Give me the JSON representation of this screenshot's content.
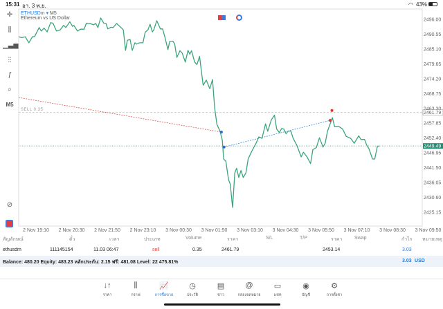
{
  "status_bar": {
    "time": "15:31",
    "date": "อา. 3 พ.ย.",
    "battery": "43%"
  },
  "chart_header": {
    "symbol": "ETHUSDm",
    "timeframe": "M5",
    "description": "Ethereum vs US Dollar"
  },
  "toolbar": {
    "timeframe_label": "M5"
  },
  "chart_data": {
    "type": "line",
    "title": "ETHUSDm, M5",
    "x_unit": "minutes since 2 Nov 19:10",
    "ylim": [
      2421,
      2499
    ],
    "y_ticks": [
      "2496.00",
      "2490.55",
      "2485.10",
      "2479.65",
      "2474.20",
      "2468.75",
      "2463.30",
      "2457.85",
      "2452.40",
      "2446.95",
      "2441.50",
      "2436.05",
      "2430.60",
      "2425.15"
    ],
    "x_ticks": [
      "2 Nov 19:10",
      "2 Nov 20:30",
      "2 Nov 21:50",
      "2 Nov 23:10",
      "3 Nov 00:30",
      "3 Nov 01:50",
      "3 Nov 03:10",
      "3 Nov 04:30",
      "3 Nov 05:50",
      "3 Nov 07:10",
      "3 Nov 08:30",
      "3 Nov 09:50"
    ],
    "order_line": {
      "label": "SELL 0.35",
      "price": 2461.79,
      "price_label": "2461.79"
    },
    "current_price": {
      "price": 2449.49,
      "label": "2449.49"
    },
    "series": [
      {
        "name": "ETHUSDm",
        "color": "#3aa57a",
        "points": [
          [
            -39,
            2489.6
          ],
          [
            -32,
            2489.3
          ],
          [
            -24,
            2489.6
          ],
          [
            -16,
            2487.4
          ],
          [
            -8,
            2489.6
          ],
          [
            -3,
            2489.7
          ],
          [
            7,
            2493.0
          ],
          [
            12,
            2491.7
          ],
          [
            18,
            2492.8
          ],
          [
            25,
            2491.4
          ],
          [
            33,
            2494.8
          ],
          [
            38,
            2494.6
          ],
          [
            46,
            2491.7
          ],
          [
            54,
            2492.1
          ],
          [
            62,
            2493.8
          ],
          [
            67,
            2493.0
          ],
          [
            76,
            2495.1
          ],
          [
            82,
            2493.4
          ],
          [
            85,
            2493.8
          ],
          [
            93,
            2491.7
          ],
          [
            100,
            2492.4
          ],
          [
            108,
            2492.4
          ],
          [
            113,
            2494.6
          ],
          [
            121,
            2494.5
          ],
          [
            129,
            2494.0
          ],
          [
            134,
            2494.5
          ],
          [
            139,
            2493.0
          ],
          [
            145,
            2496.5
          ],
          [
            152,
            2494.6
          ],
          [
            157,
            2494.5
          ],
          [
            161,
            2492.5
          ],
          [
            168,
            2493.1
          ],
          [
            173,
            2493.0
          ],
          [
            181,
            2494.5
          ],
          [
            194,
            2492.5
          ],
          [
            196,
            2492.1
          ],
          [
            201,
            2484.6
          ],
          [
            205,
            2488.3
          ],
          [
            211,
            2488.6
          ],
          [
            216,
            2484.6
          ],
          [
            222,
            2487.4
          ],
          [
            226,
            2486.9
          ],
          [
            232,
            2487.4
          ],
          [
            240,
            2487.4
          ],
          [
            245,
            2491.3
          ],
          [
            251,
            2492.1
          ],
          [
            256,
            2494.2
          ],
          [
            261,
            2491.4
          ],
          [
            264,
            2492.1
          ],
          [
            271,
            2495.5
          ],
          [
            279,
            2492.5
          ],
          [
            284,
            2492.5
          ],
          [
            289,
            2489.6
          ],
          [
            296,
            2484.9
          ],
          [
            300,
            2487.9
          ],
          [
            307,
            2488.0
          ],
          [
            311,
            2487.0
          ],
          [
            316,
            2482.0
          ],
          [
            323,
            2484.5
          ],
          [
            328,
            2483.6
          ],
          [
            335,
            2480.3
          ],
          [
            341,
            2484.6
          ],
          [
            345,
            2483.2
          ],
          [
            349,
            2484.5
          ],
          [
            356,
            2480.3
          ],
          [
            361,
            2479.4
          ],
          [
            367,
            2482.4
          ],
          [
            375,
            2471.8
          ],
          [
            382,
            2473.7
          ],
          [
            390,
            2470.5
          ],
          [
            396,
            2473.9
          ],
          [
            401,
            2463.3
          ],
          [
            406,
            2457.4
          ],
          [
            413,
            2454.9
          ],
          [
            418,
            2451.5
          ],
          [
            421,
            2444.7
          ],
          [
            426,
            2443.9
          ],
          [
            429,
            2440.5
          ],
          [
            432,
            2437.1
          ],
          [
            436,
            2435.4
          ],
          [
            441,
            2426.9
          ],
          [
            446,
            2439.6
          ],
          [
            450,
            2441.3
          ],
          [
            455,
            2437.9
          ],
          [
            460,
            2440.5
          ],
          [
            465,
            2437.9
          ],
          [
            471,
            2439.6
          ],
          [
            476,
            2444.7
          ],
          [
            483,
            2447.2
          ],
          [
            494,
            2450.6
          ],
          [
            500,
            2452.8
          ],
          [
            507,
            2452.3
          ],
          [
            515,
            2457.6
          ],
          [
            520,
            2454.9
          ],
          [
            528,
            2459.1
          ],
          [
            535,
            2460.8
          ],
          [
            540,
            2455.7
          ],
          [
            546,
            2454.4
          ],
          [
            551,
            2455.9
          ],
          [
            556,
            2455.7
          ],
          [
            561,
            2454.0
          ],
          [
            566,
            2455.0
          ],
          [
            572,
            2454.9
          ],
          [
            577,
            2452.3
          ],
          [
            585,
            2449.8
          ],
          [
            595,
            2445.5
          ],
          [
            600,
            2447.2
          ],
          [
            608,
            2445.5
          ],
          [
            616,
            2443.0
          ],
          [
            621,
            2448.1
          ],
          [
            629,
            2448.9
          ],
          [
            636,
            2452.5
          ],
          [
            644,
            2449.1
          ],
          [
            649,
            2450.6
          ],
          [
            654,
            2454.9
          ],
          [
            665,
            2459.9
          ],
          [
            670,
            2456.6
          ],
          [
            680,
            2456.6
          ],
          [
            688,
            2455.7
          ],
          [
            696,
            2453.0
          ],
          [
            706,
            2452.3
          ],
          [
            714,
            2450.5
          ],
          [
            724,
            2453.2
          ],
          [
            729,
            2451.9
          ],
          [
            737,
            2451.9
          ],
          [
            742,
            2449.8
          ],
          [
            747,
            2448.5
          ],
          [
            755,
            2444.7
          ],
          [
            760,
            2444.7
          ],
          [
            766,
            2449.4
          ],
          [
            771,
            2449.5
          ]
        ]
      }
    ],
    "trade_lines": [
      {
        "color": "#d9534f",
        "from": [
          -39,
          2467.3
        ],
        "to": [
          416,
          2454.6
        ]
      },
      {
        "color": "#3b8de0",
        "from": [
          422,
          2449.1
        ],
        "to": [
          660,
          2458.9
        ]
      }
    ],
    "trade_markers": [
      {
        "color": "#1e6fe0",
        "t": 416,
        "p": 2454.6
      },
      {
        "color": "#1e6fe0",
        "t": 422,
        "p": 2449.1
      },
      {
        "color": "#e03030",
        "t": 660,
        "p": 2458.9
      },
      {
        "color": "#e03030",
        "t": 664,
        "p": 2462.5
      }
    ]
  },
  "positions": {
    "headers": [
      "สัญลักษณ์",
      "ตั๋ว",
      "เวลา",
      "ประเภท",
      "Volume",
      "ราคา",
      "S/L",
      "T/P",
      "ราคา",
      "Swap",
      "กำไร",
      "หมายเหตุ"
    ],
    "rows": [
      {
        "symbol": "ethusdm",
        "ticket": "111145154",
        "time": "11.03 06:47",
        "type": "sell",
        "volume": "0.35",
        "open_price": "2461.79",
        "sl": "",
        "tp": "",
        "price": "2453.14",
        "swap": "",
        "profit": "3.03",
        "comment": ""
      }
    ],
    "summary": "Balance: 480.20 Equity: 483.23 หลักประกัน: 2.15 ฟรี: 481.08 Level: 22 475.81%",
    "total_profit": "3.03",
    "currency": "USD"
  },
  "bottom_nav": [
    {
      "label": "ราคา",
      "icon": "↓↑"
    },
    {
      "label": "กราฟ",
      "icon": "⫼"
    },
    {
      "label": "การซื้อขาย",
      "icon": "📈"
    },
    {
      "label": "ประวัติ",
      "icon": "◷"
    },
    {
      "label": "ข่าว",
      "icon": "▤"
    },
    {
      "label": "กล่องจดหมาย",
      "icon": "@"
    },
    {
      "label": "แชท",
      "icon": "▭"
    },
    {
      "label": "บัญชี",
      "icon": "◉"
    },
    {
      "label": "การตั้งค่า",
      "icon": "⚙"
    }
  ]
}
